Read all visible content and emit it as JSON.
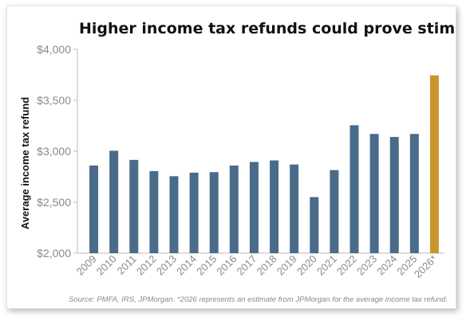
{
  "chart_data": {
    "type": "bar",
    "title": "Higher income tax refunds could prove stimulative",
    "ylabel": "Average income tax refund",
    "xlabel": "",
    "ylim": [
      2000,
      4000
    ],
    "yticks": [
      "$2,000",
      "$2,500",
      "$3,000",
      "$3,500",
      "$4,000"
    ],
    "ytick_values": [
      2000,
      2500,
      3000,
      3500,
      4000
    ],
    "categories": [
      "2009",
      "2010",
      "2011",
      "2012",
      "2013",
      "2014",
      "2015",
      "2016",
      "2017",
      "2018",
      "2019",
      "2020",
      "2021",
      "2022",
      "2023",
      "2024",
      "2025",
      "2026*"
    ],
    "values": [
      2860,
      3005,
      2915,
      2805,
      2755,
      2790,
      2795,
      2860,
      2895,
      2910,
      2870,
      2550,
      2815,
      3255,
      3170,
      3140,
      3170,
      3745
    ],
    "colors": {
      "actual": "#4a6b8a",
      "estimate": "#c9962e"
    },
    "estimate_categories": [
      "2026*"
    ],
    "grid": false,
    "source": "Source: PMFA, IRS, JPMorgan. *2026 represents an estimate from JPMorgan for the average income tax refund."
  }
}
